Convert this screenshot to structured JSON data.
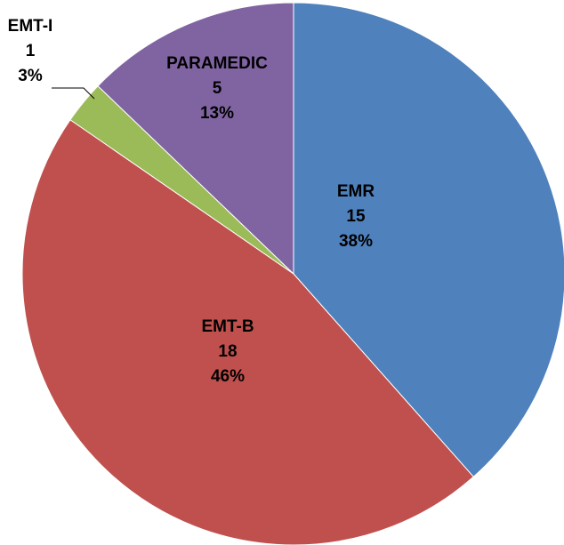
{
  "chart_data": {
    "type": "pie",
    "categories": [
      "EMR",
      "EMT-B",
      "EMT-I",
      "PARAMEDIC"
    ],
    "values": [
      15,
      18,
      1,
      5
    ],
    "percent_labels": [
      "38%",
      "46%",
      "3%",
      "13%"
    ],
    "colors": [
      "#4f81bd",
      "#c0504d",
      "#9bbb59",
      "#8064a2"
    ]
  }
}
